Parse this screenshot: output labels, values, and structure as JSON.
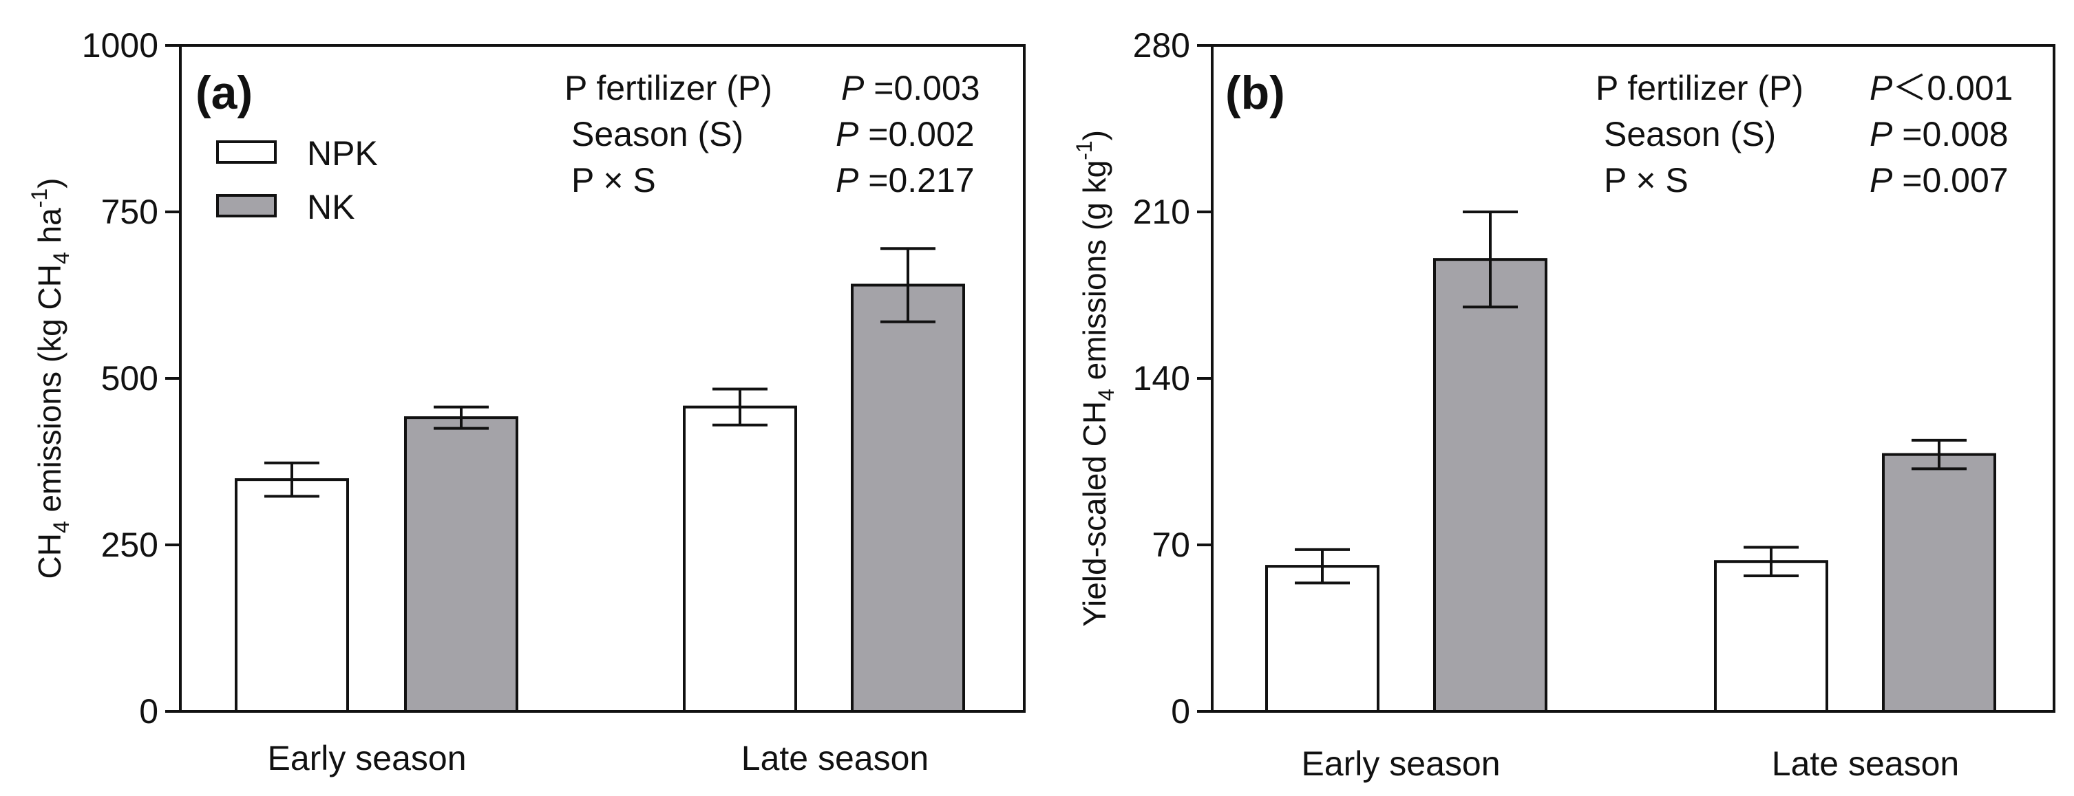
{
  "chart_data": [
    {
      "type": "bar",
      "panel_label": "(a)",
      "categories": [
        "Early season",
        "Late season"
      ],
      "series": [
        {
          "name": "NPK",
          "color": "#ffffff",
          "values": [
            348,
            457
          ],
          "errors": [
            25,
            27
          ]
        },
        {
          "name": "NK",
          "color": "#a4a3a8",
          "values": [
            441,
            640
          ],
          "errors": [
            16,
            55
          ]
        }
      ],
      "ylabel": {
        "prefix": "CH",
        "sub": "4",
        "mid": " emissions (kg CH",
        "sub2": "4",
        "mid2": " ha",
        "sup": "-1",
        "suffix": ")"
      },
      "ylim": [
        0,
        1000
      ],
      "yticks": [
        "0",
        "250",
        "500",
        "750",
        "1000"
      ],
      "yticks_values": [
        0,
        250,
        500,
        750,
        1000
      ],
      "legend": [
        "NPK",
        "NK"
      ],
      "stats": [
        {
          "label": "P fertilizer (P)",
          "pvar": "P",
          "value": " =0.003"
        },
        {
          "label": "Season (S)",
          "pvar": "P",
          "value": " =0.002"
        },
        {
          "label": "P × S",
          "pvar": "P",
          "value": " =0.217"
        }
      ]
    },
    {
      "type": "bar",
      "panel_label": "(b)",
      "categories": [
        "Early season",
        "Late season"
      ],
      "series": [
        {
          "name": "NPK",
          "color": "#ffffff",
          "values": [
            61,
            63
          ],
          "errors": [
            7,
            6
          ]
        },
        {
          "name": "NK",
          "color": "#a4a3a8",
          "values": [
            190,
            108
          ],
          "errors": [
            20,
            6
          ]
        }
      ],
      "ylabel": {
        "prefix": "Yield-scaled CH",
        "sub": "4",
        "mid": " emissions (g kg",
        "sup": "-1",
        "suffix": ")"
      },
      "ylim": [
        0,
        280
      ],
      "yticks": [
        "0",
        "70",
        "140",
        "210",
        "280"
      ],
      "yticks_values": [
        0,
        70,
        140,
        210,
        280
      ],
      "stats": [
        {
          "label": "P fertilizer (P)",
          "pvar": "P",
          "value": "＜0.001"
        },
        {
          "label": "Season (S)",
          "pvar": "P",
          "value": " =0.008"
        },
        {
          "label": "P × S",
          "pvar": "P",
          "value": " =0.007"
        }
      ]
    }
  ]
}
